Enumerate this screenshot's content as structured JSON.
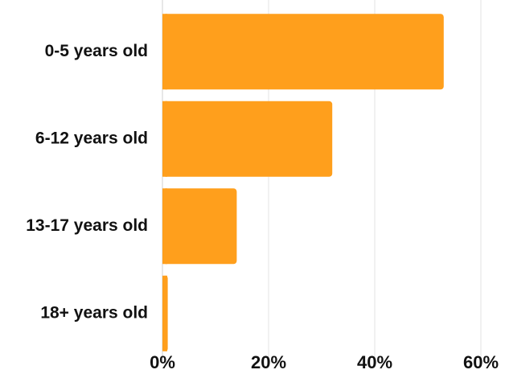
{
  "chart_data": {
    "type": "bar",
    "orientation": "horizontal",
    "categories": [
      "0-5 years old",
      "6-12 years old",
      "13-17 years old",
      "18+ years old"
    ],
    "values": [
      53,
      32,
      14,
      1
    ],
    "xlim": [
      0,
      60
    ],
    "x_ticks": [
      "0%",
      "20%",
      "40%",
      "60%"
    ],
    "x_tick_values": [
      0,
      20,
      40,
      60
    ],
    "grid": true,
    "legend": "none",
    "title": "",
    "xlabel": "",
    "ylabel": "",
    "colors": {
      "bar": "#FF9F1C",
      "grid": "#E3E3E3",
      "axis": "#CFCFCF",
      "text": "#111111"
    }
  }
}
